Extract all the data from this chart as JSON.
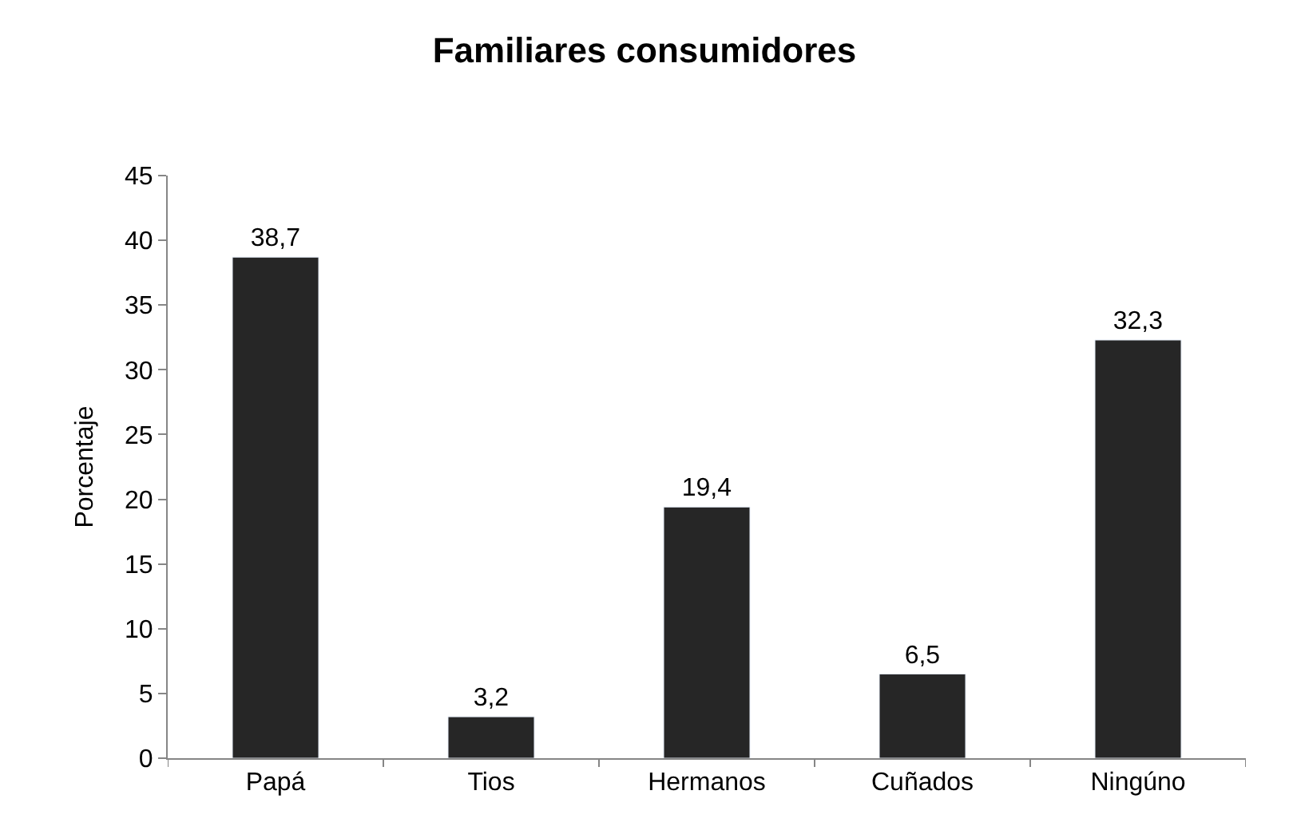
{
  "chart_data": {
    "type": "bar",
    "title": "Familiares consumidores",
    "ylabel": "Porcentaje",
    "categories": [
      "Papá",
      "Tios",
      "Hermanos",
      "Cuñados",
      "Ningúno"
    ],
    "values": [
      38.7,
      3.2,
      19.4,
      6.5,
      32.3
    ],
    "value_labels": [
      "38,7",
      "3,2",
      "19,4",
      "6,5",
      "32,3"
    ],
    "color": "#262626",
    "ylim": [
      0,
      45
    ],
    "yticks": [
      0,
      5,
      10,
      15,
      20,
      25,
      30,
      35,
      40,
      45
    ],
    "legend": false
  }
}
